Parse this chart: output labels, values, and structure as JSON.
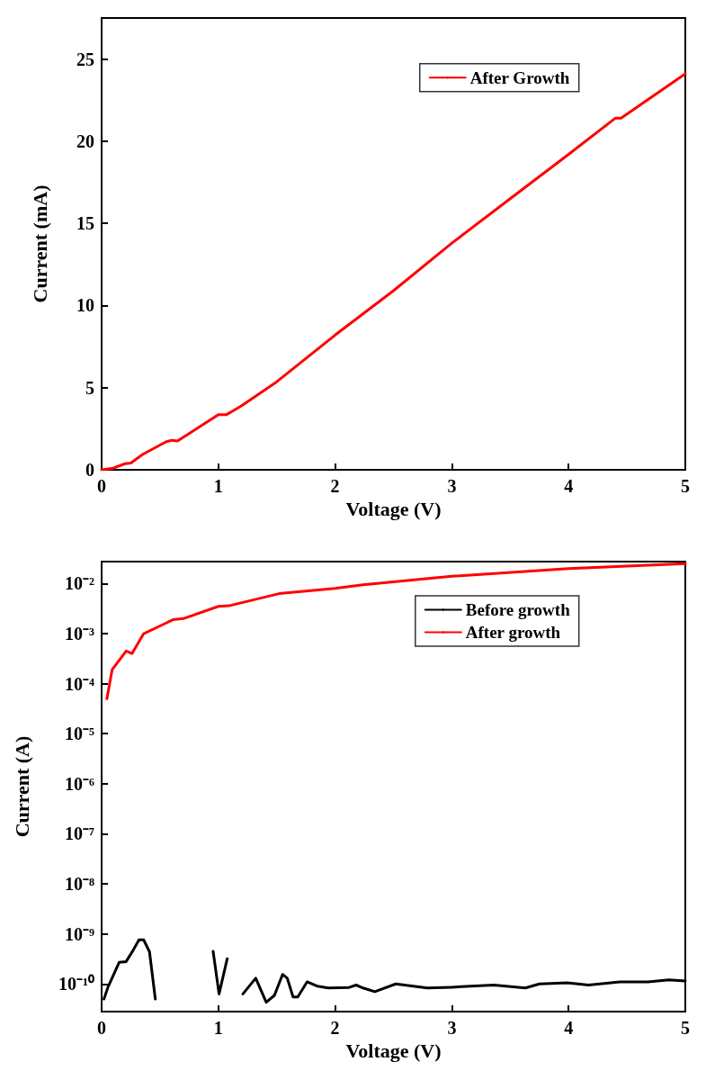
{
  "chart_data": [
    {
      "type": "line",
      "xlabel": "Voltage (V)",
      "ylabel": "Current (mA)",
      "xlim": [
        0,
        5
      ],
      "xticks": [
        0,
        1,
        2,
        3,
        4,
        5
      ],
      "ylim": [
        0,
        27.5
      ],
      "yticks": [
        0,
        5,
        10,
        15,
        20,
        25
      ],
      "grid": false,
      "legend": "top right",
      "marker": "none",
      "line_style": "solid",
      "series": [
        {
          "name": "After Growth",
          "color": "#ff0000",
          "x": [
            0,
            0.1,
            0.2,
            0.25,
            0.35,
            0.55,
            0.6,
            0.65,
            1.0,
            1.07,
            1.2,
            1.5,
            2.0,
            2.5,
            3.0,
            3.5,
            4.0,
            4.4,
            4.45,
            5.0
          ],
          "values": [
            0,
            0.1,
            0.37,
            0.41,
            0.93,
            1.7,
            1.8,
            1.75,
            3.36,
            3.36,
            3.9,
            5.36,
            8.2,
            10.9,
            13.8,
            16.5,
            19.2,
            21.4,
            21.4,
            24.1
          ]
        }
      ]
    },
    {
      "type": "line",
      "xlabel": "Voltage (V)",
      "ylabel": "Current (A)",
      "log": "y",
      "xlim": [
        0,
        5
      ],
      "xticks": [
        0,
        1,
        2,
        3,
        4,
        5
      ],
      "ylim": [
        2.8e-11,
        0.0275
      ],
      "yticks": [
        {
          "value": 1e-10,
          "label": "10⁻¹⁰"
        },
        {
          "value": 1e-09,
          "label": "10⁻⁹"
        },
        {
          "value": 1e-08,
          "label": "10⁻⁸"
        },
        {
          "value": 1e-07,
          "label": "10⁻⁷"
        },
        {
          "value": 1e-06,
          "label": "10⁻⁶"
        },
        {
          "value": 1e-05,
          "label": "10⁻⁵"
        },
        {
          "value": 0.0001,
          "label": "10⁻⁴"
        },
        {
          "value": 0.001,
          "label": "10⁻³"
        },
        {
          "value": 0.01,
          "label": "10⁻²"
        }
      ],
      "grid": false,
      "legend": "top right",
      "marker": "none",
      "line_style": "solid",
      "series": [
        {
          "name": "Before growth",
          "color": "#000000",
          "x": [
            0.02,
            0.055,
            0.15,
            0.21,
            0.27,
            0.32,
            0.36,
            0.41,
            0.46,
            0.7,
            0.955,
            1.006,
            1.076,
            1.15,
            1.21,
            1.32,
            1.41,
            1.48,
            1.55,
            1.59,
            1.64,
            1.68,
            1.76,
            1.85,
            1.94,
            2.12,
            2.18,
            2.24,
            2.34,
            2.52,
            2.79,
            3.0,
            3.36,
            3.63,
            3.75,
            3.99,
            4.17,
            4.44,
            4.68,
            4.86,
            5.0
          ],
          "values": [
            5e-11,
            8.7e-11,
            2.7e-10,
            2.8e-10,
            4.7e-10,
            7.6e-10,
            7.6e-10,
            4.4e-10,
            5e-11,
            null,
            4.5e-10,
            6.3e-11,
            3.2e-10,
            null,
            6.3e-11,
            1.3e-10,
            4.3e-11,
            5.9e-11,
            1.55e-10,
            1.3e-10,
            5.5e-11,
            5.5e-11,
            1.1e-10,
            9e-11,
            8.3e-11,
            8.5e-11,
            9.5e-11,
            8.3e-11,
            7e-11,
            1e-10,
            8.3e-11,
            8.6e-11,
            9.5e-11,
            8.3e-11,
            1e-10,
            1.05e-10,
            9.5e-11,
            1.1e-10,
            1.1e-10,
            1.2e-10,
            1.15e-10
          ]
        },
        {
          "name": "After growth",
          "color": "#ff0000",
          "x": [
            0.045,
            0.09,
            0.21,
            0.26,
            0.36,
            0.52,
            0.61,
            0.7,
            1.0,
            1.09,
            1.52,
            2.0,
            2.24,
            3.0,
            4.0,
            5.0
          ],
          "values": [
            5e-05,
            0.00019,
            0.00045,
            0.0004,
            0.001,
            0.0015,
            0.0019,
            0.002,
            0.0035,
            0.0036,
            0.0063,
            0.008,
            0.0095,
            0.014,
            0.02,
            0.025
          ]
        }
      ]
    }
  ]
}
